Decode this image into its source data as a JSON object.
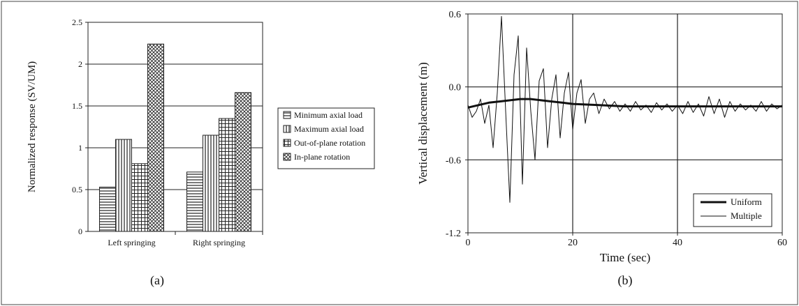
{
  "chart_data": [
    {
      "type": "bar",
      "panel_label": "(a)",
      "ylabel": "Normalized response (SV/UM)",
      "ylim": [
        0,
        2.5
      ],
      "yticks": [
        "0",
        "0.5",
        "1",
        "1.5",
        "2",
        "2.5"
      ],
      "grid": "horizontal",
      "legend_position": "right",
      "categories": [
        "Left springing",
        "Right springing"
      ],
      "series": [
        {
          "name": "Minimum axial load",
          "values": [
            0.53,
            0.71
          ],
          "pattern": "horizontal-lines"
        },
        {
          "name": "Maximum axial load",
          "values": [
            1.1,
            1.15
          ],
          "pattern": "vertical-lines"
        },
        {
          "name": "Out-of-plane rotation",
          "values": [
            0.81,
            1.35
          ],
          "pattern": "grid"
        },
        {
          "name": "In-plane rotation",
          "values": [
            2.24,
            1.66
          ],
          "pattern": "crosshatch"
        }
      ]
    },
    {
      "type": "line",
      "panel_label": "(b)",
      "xlabel": "Time (sec)",
      "ylabel": "Vertical displacement (m)",
      "xlim": [
        0,
        60
      ],
      "ylim": [
        -1.2,
        0.6
      ],
      "xticks": [
        "0",
        "20",
        "40",
        "60"
      ],
      "yticks": [
        "0.6",
        "0.0",
        "-0.6",
        "-1.2"
      ],
      "grid": "both",
      "legend_position": "bottom-right",
      "series": [
        {
          "name": "Uniform",
          "x": [
            0,
            2,
            4,
            6,
            8,
            10,
            12,
            14,
            16,
            18,
            20,
            25,
            30,
            35,
            40,
            45,
            50,
            55,
            60
          ],
          "y": [
            -0.17,
            -0.15,
            -0.13,
            -0.12,
            -0.11,
            -0.1,
            -0.1,
            -0.11,
            -0.12,
            -0.13,
            -0.14,
            -0.15,
            -0.16,
            -0.16,
            -0.16,
            -0.16,
            -0.16,
            -0.16,
            -0.16
          ]
        },
        {
          "name": "Multiple",
          "x": [
            0,
            0.8,
            1.6,
            2.4,
            3.2,
            4.0,
            4.8,
            5.6,
            6.4,
            7.2,
            8.0,
            8.8,
            9.6,
            10.4,
            11.2,
            12.0,
            12.8,
            13.6,
            14.4,
            15.2,
            16.0,
            16.8,
            17.6,
            18.4,
            19.2,
            20.0,
            20.8,
            21.6,
            22.4,
            23.2,
            24.0,
            25.0,
            26.0,
            27.0,
            28.0,
            29.0,
            30.0,
            31.0,
            32.0,
            33.0,
            34.0,
            35.0,
            36.0,
            37.0,
            38.0,
            39.0,
            40.0,
            41.0,
            42.0,
            43.0,
            44.0,
            45.0,
            46.0,
            47.0,
            48.0,
            49.0,
            50.0,
            51.0,
            52.0,
            53.0,
            54.0,
            55.0,
            56.0,
            57.0,
            58.0,
            59.0,
            60.0
          ],
          "y": [
            -0.15,
            -0.25,
            -0.2,
            -0.1,
            -0.3,
            -0.15,
            -0.5,
            -0.05,
            0.58,
            -0.2,
            -0.95,
            0.1,
            0.42,
            -0.8,
            0.32,
            -0.2,
            -0.6,
            0.05,
            0.15,
            -0.5,
            -0.1,
            0.1,
            -0.42,
            -0.05,
            0.12,
            -0.35,
            -0.05,
            0.06,
            -0.3,
            -0.1,
            -0.05,
            -0.22,
            -0.1,
            -0.18,
            -0.12,
            -0.2,
            -0.14,
            -0.2,
            -0.12,
            -0.19,
            -0.15,
            -0.21,
            -0.13,
            -0.19,
            -0.14,
            -0.2,
            -0.15,
            -0.22,
            -0.12,
            -0.21,
            -0.14,
            -0.24,
            -0.08,
            -0.22,
            -0.1,
            -0.25,
            -0.12,
            -0.2,
            -0.14,
            -0.19,
            -0.15,
            -0.2,
            -0.12,
            -0.2,
            -0.14,
            -0.18,
            -0.15
          ]
        }
      ]
    }
  ]
}
